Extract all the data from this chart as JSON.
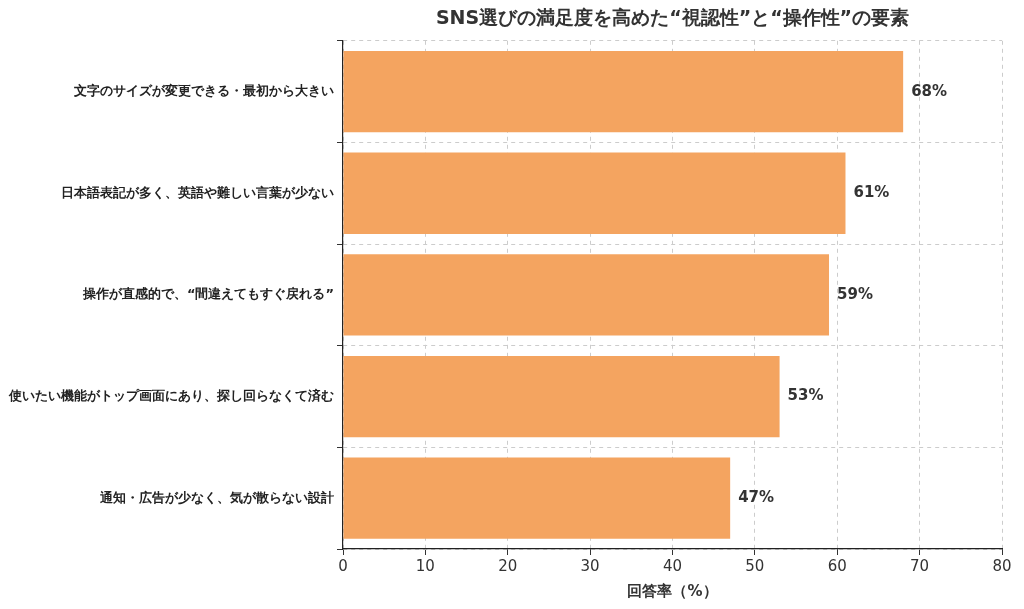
{
  "chart_data": {
    "type": "bar",
    "orientation": "horizontal",
    "title": "SNS選びの満足度を高めた“視認性”と“操作性”の要素",
    "xlabel": "回答率（%）",
    "categories": [
      "文字のサイズが変更できる・最初から大きい",
      "日本語表記が多く、英語や難しい言葉が少ない",
      "操作が直感的で、“間違えてもすぐ戻れる”",
      "使いたい機能がトップ画面にあり、探し回らなくて済む",
      "通知・広告が少なく、気が散らない設計"
    ],
    "values": [
      68,
      61,
      59,
      53,
      47
    ],
    "value_labels": [
      "68%",
      "61%",
      "59%",
      "53%",
      "47%"
    ],
    "color": "#f4a460",
    "xlim": [
      0,
      80
    ],
    "xticks": [
      0,
      10,
      20,
      30,
      40,
      50,
      60,
      70,
      80
    ],
    "grid": true,
    "legend": false
  }
}
